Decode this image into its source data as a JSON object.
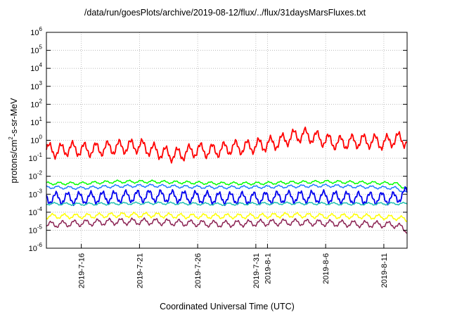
{
  "chart_data": {
    "type": "line",
    "title": "/data/run/goesPlots/archive/2019-08-12/flux/../flux/31daysMarsFluxes.txt",
    "xlabel": "Coordinated Universal Time (UTC)",
    "ylabel": {
      "prefix": "protons/cm",
      "sup": "2",
      "suffix": "-s-sr-MeV"
    },
    "y_scale": "log",
    "ylim": [
      1e-06,
      1000000.0
    ],
    "y_ticks": [
      {
        "base": "10",
        "exp": "-6"
      },
      {
        "base": "10",
        "exp": "-5"
      },
      {
        "base": "10",
        "exp": "-4"
      },
      {
        "base": "10",
        "exp": "-3"
      },
      {
        "base": "10",
        "exp": "-2"
      },
      {
        "base": "10",
        "exp": "-1"
      },
      {
        "base": "10",
        "exp": "0"
      },
      {
        "base": "10",
        "exp": "1"
      },
      {
        "base": "10",
        "exp": "2"
      },
      {
        "base": "10",
        "exp": "3"
      },
      {
        "base": "10",
        "exp": "4"
      },
      {
        "base": "10",
        "exp": "5"
      },
      {
        "base": "10",
        "exp": "6"
      }
    ],
    "xlim": [
      "2019-07-13",
      "2019-08-13"
    ],
    "x_ticks": [
      "2019-7-16",
      "2019-7-21",
      "2019-7-26",
      "2019-7-31",
      "2019-8-1",
      "2019-8-6",
      "2019-8-11"
    ],
    "grid": true,
    "series": [
      {
        "color": "#ff0000",
        "x": [
          "2019-07-13",
          "2019-07-14",
          "2019-07-15",
          "2019-07-16",
          "2019-07-17",
          "2019-07-18",
          "2019-07-19",
          "2019-07-20",
          "2019-07-21",
          "2019-07-22",
          "2019-07-23",
          "2019-07-24",
          "2019-07-25",
          "2019-07-26",
          "2019-07-27",
          "2019-07-28",
          "2019-07-29",
          "2019-07-30",
          "2019-07-31",
          "2019-08-01",
          "2019-08-02",
          "2019-08-03",
          "2019-08-04",
          "2019-08-05",
          "2019-08-06",
          "2019-08-07",
          "2019-08-08",
          "2019-08-09",
          "2019-08-10",
          "2019-08-11",
          "2019-08-12",
          "2019-08-13"
        ],
        "values": [
          0.3,
          0.25,
          0.35,
          0.3,
          0.3,
          0.35,
          0.4,
          0.45,
          0.5,
          0.3,
          0.2,
          0.15,
          0.2,
          0.3,
          0.25,
          0.3,
          0.4,
          0.4,
          0.5,
          0.6,
          0.8,
          1.5,
          2,
          1.5,
          1.0,
          0.7,
          0.8,
          0.9,
          0.9,
          0.7,
          1.2,
          1.0
        ]
      },
      {
        "color": "#00ff00",
        "x": [
          "2019-07-13",
          "2019-07-16",
          "2019-07-19",
          "2019-07-22",
          "2019-07-25",
          "2019-07-28",
          "2019-07-31",
          "2019-08-03",
          "2019-08-06",
          "2019-08-09",
          "2019-08-12",
          "2019-08-13"
        ],
        "values": [
          0.004,
          0.004,
          0.005,
          0.005,
          0.0045,
          0.004,
          0.004,
          0.0045,
          0.005,
          0.0045,
          0.004,
          0.002
        ]
      },
      {
        "color": "#1e78ff",
        "x": [
          "2019-07-13",
          "2019-07-16",
          "2019-07-19",
          "2019-07-22",
          "2019-07-25",
          "2019-07-28",
          "2019-07-31",
          "2019-08-03",
          "2019-08-06",
          "2019-08-09",
          "2019-08-12",
          "2019-08-13"
        ],
        "values": [
          0.0025,
          0.0022,
          0.0028,
          0.003,
          0.0026,
          0.0024,
          0.0025,
          0.0027,
          0.003,
          0.0026,
          0.0022,
          0.0012
        ]
      },
      {
        "color": "#0000ee",
        "x": [
          "2019-07-13",
          "2019-07-16",
          "2019-07-19",
          "2019-07-22",
          "2019-07-25",
          "2019-07-28",
          "2019-07-31",
          "2019-08-03",
          "2019-08-06",
          "2019-08-09",
          "2019-08-12",
          "2019-08-13"
        ],
        "values": [
          0.0006,
          0.0006,
          0.0007,
          0.0008,
          0.0007,
          0.0006,
          0.0006,
          0.0007,
          0.0007,
          0.0006,
          0.0006,
          0.0012
        ]
      },
      {
        "color": "#20c0b0",
        "x": [
          "2019-07-13",
          "2019-07-16",
          "2019-07-19",
          "2019-07-22",
          "2019-07-25",
          "2019-07-28",
          "2019-07-31",
          "2019-08-03",
          "2019-08-06",
          "2019-08-09",
          "2019-08-12",
          "2019-08-13"
        ],
        "values": [
          0.0003,
          0.00028,
          0.0003,
          0.00032,
          0.0003,
          0.00028,
          0.0003,
          0.00031,
          0.0003,
          0.00029,
          0.0003,
          0.0003
        ]
      },
      {
        "color": "#ffff00",
        "x": [
          "2019-07-13",
          "2019-07-16",
          "2019-07-19",
          "2019-07-22",
          "2019-07-25",
          "2019-07-28",
          "2019-07-31",
          "2019-08-03",
          "2019-08-06",
          "2019-08-09",
          "2019-08-12",
          "2019-08-13"
        ],
        "values": [
          6e-05,
          6e-05,
          7e-05,
          7e-05,
          6e-05,
          6e-05,
          6e-05,
          7e-05,
          6e-05,
          6e-05,
          5e-05,
          4e-05
        ]
      },
      {
        "color": "#8b2252",
        "x": [
          "2019-07-13",
          "2019-07-16",
          "2019-07-19",
          "2019-07-22",
          "2019-07-25",
          "2019-07-28",
          "2019-07-31",
          "2019-08-03",
          "2019-08-06",
          "2019-08-09",
          "2019-08-12",
          "2019-08-13"
        ],
        "values": [
          2e-05,
          2.5e-05,
          3e-05,
          3e-05,
          2.5e-05,
          2.2e-05,
          2.5e-05,
          2.8e-05,
          2.5e-05,
          2.2e-05,
          2e-05,
          1e-05
        ]
      }
    ]
  }
}
